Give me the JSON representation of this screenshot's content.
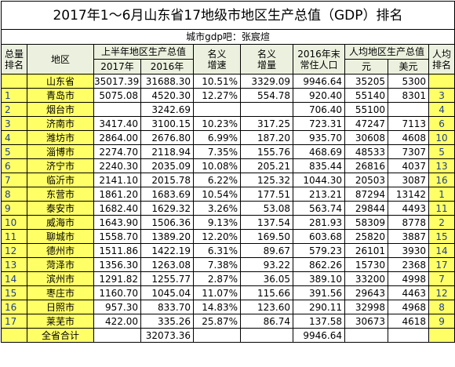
{
  "title": "2017年1～6月山东省17地级市地区生产总值（GDP）排名",
  "subtitle": "城市gdp吧：张宸煊",
  "header": {
    "rank_total": [
      "总量",
      "排名"
    ],
    "region": "地区",
    "gdp_h1": "上半年地区生产总值",
    "gdp_2017": "2017年",
    "gdp_2016": "2016年",
    "growth": [
      "名义",
      "增速"
    ],
    "increase": [
      "名义",
      "增量"
    ],
    "population": [
      "2016年末",
      "常住人口"
    ],
    "per_capita": "人均地区生产总值",
    "per_capita_yuan": "元",
    "per_capita_usd": "美元",
    "rank_per_capita": [
      "人均",
      "排名"
    ]
  },
  "rows": [
    [
      null,
      "山东省",
      "35017.39",
      "31688.30",
      "10.51%",
      "3329.09",
      "9946.64",
      "35205",
      "5300",
      null
    ],
    [
      "1",
      "青岛市",
      "5075.08",
      "4520.30",
      "12.27%",
      "554.78",
      "920.40",
      "55140",
      "8301",
      "3"
    ],
    [
      "2",
      "烟台市",
      null,
      "3242.69",
      null,
      null,
      "706.40",
      "55100",
      null,
      "4"
    ],
    [
      "3",
      "济南市",
      "3417.40",
      "3100.15",
      "10.23%",
      "317.25",
      "723.31",
      "47247",
      "7113",
      "6"
    ],
    [
      "4",
      "潍坊市",
      "2864.00",
      "2676.80",
      "6.99%",
      "187.20",
      "935.70",
      "30608",
      "4608",
      "10"
    ],
    [
      "5",
      "淄博市",
      "2274.70",
      "2118.94",
      "7.35%",
      "155.76",
      "468.69",
      "48533",
      "7307",
      "5"
    ],
    [
      "6",
      "济宁市",
      "2240.30",
      "2035.09",
      "10.08%",
      "205.21",
      "835.44",
      "26816",
      "4037",
      "13"
    ],
    [
      "7",
      "临沂市",
      "2141.10",
      "2015.78",
      "6.22%",
      "125.32",
      "1044.30",
      "20503",
      "3087",
      "16"
    ],
    [
      "8",
      "东营市",
      "1861.20",
      "1683.69",
      "10.54%",
      "177.51",
      "213.21",
      "87294",
      "13142",
      "1"
    ],
    [
      "9",
      "泰安市",
      "1682.40",
      "1629.32",
      "3.26%",
      "53.08",
      "563.74",
      "29844",
      "4493",
      "11"
    ],
    [
      "10",
      "威海市",
      "1643.90",
      "1506.36",
      "9.13%",
      "137.54",
      "281.93",
      "58309",
      "8778",
      "2"
    ],
    [
      "11",
      "聊城市",
      "1558.70",
      "1389.20",
      "12.20%",
      "169.50",
      "603.68",
      "25820",
      "3887",
      "15"
    ],
    [
      "12",
      "德州市",
      "1511.86",
      "1422.19",
      "6.31%",
      "89.67",
      "579.23",
      "26101",
      "3930",
      "14"
    ],
    [
      "13",
      "菏泽市",
      "1356.30",
      "1263.08",
      "7.38%",
      "93.22",
      "862.26",
      "15730",
      "2368",
      "17"
    ],
    [
      "14",
      "滨州市",
      "1291.82",
      "1255.77",
      "2.87%",
      "36.05",
      "389.10",
      "33200",
      "4998",
      "7"
    ],
    [
      "15",
      "枣庄市",
      "1160.70",
      "1045.04",
      "11.07%",
      "115.66",
      "391.56",
      "29643",
      "4463",
      "12"
    ],
    [
      "16",
      "日照市",
      "957.30",
      "833.70",
      "14.83%",
      "123.60",
      "290.11",
      "32998",
      "4968",
      "8"
    ],
    [
      "17",
      "莱芜市",
      "422.00",
      "335.26",
      "25.87%",
      "86.74",
      "137.58",
      "30673",
      "4618",
      "9"
    ],
    [
      null,
      "全省合计",
      null,
      "32073.36",
      null,
      null,
      "9946.64",
      null,
      null,
      null
    ]
  ]
}
